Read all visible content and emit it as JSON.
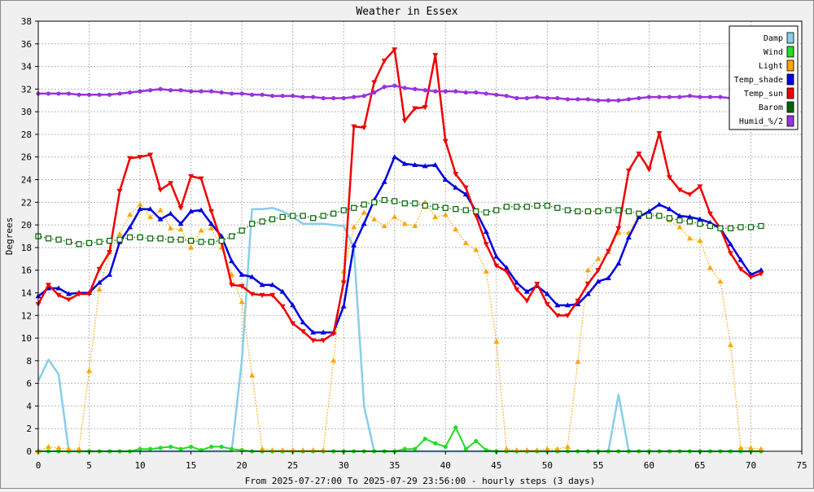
{
  "chart_data": {
    "type": "line",
    "title": "Weather in Essex",
    "xlabel": "From 2025-07-27:00 To 2025-07-29 23:56:00 - hourly steps (3 days)",
    "ylabel": "Degrees",
    "xlim": [
      0,
      75
    ],
    "ylim": [
      0,
      38
    ],
    "x_ticks": [
      0,
      5,
      10,
      15,
      20,
      25,
      30,
      35,
      40,
      45,
      50,
      55,
      60,
      65,
      70,
      75
    ],
    "y_ticks": [
      0,
      2,
      4,
      6,
      8,
      10,
      12,
      14,
      16,
      18,
      20,
      22,
      24,
      26,
      28,
      30,
      32,
      34,
      36,
      38
    ],
    "grid": true,
    "legend_position": "top-right",
    "series": [
      {
        "name": "Damp",
        "color": "#87ceeb",
        "style": "solid",
        "width": 2.5,
        "marker": "none",
        "values": [
          6.2,
          8.1,
          6.8,
          0,
          0,
          0,
          0,
          0,
          0,
          0,
          0,
          0,
          0,
          0,
          0,
          0,
          0,
          0,
          0,
          0,
          8,
          21.4,
          21.4,
          21.5,
          21.2,
          20.7,
          20.1,
          20.1,
          20.1,
          20,
          19.9,
          18,
          4,
          0,
          0,
          0,
          0,
          0,
          0,
          0,
          0,
          0,
          0,
          0,
          0,
          0,
          0,
          0,
          0,
          0,
          0,
          0,
          0,
          0,
          0,
          0,
          0,
          5,
          0,
          0,
          0,
          0,
          0,
          0,
          0,
          0,
          0,
          0,
          0,
          0,
          0,
          0
        ]
      },
      {
        "name": "Wind",
        "color": "#22dd22",
        "style": "solid",
        "width": 2,
        "marker": "circle",
        "values": [
          0,
          0,
          0,
          0,
          0,
          0,
          0,
          0,
          0,
          0,
          0.2,
          0.2,
          0.3,
          0.4,
          0.2,
          0.4,
          0.1,
          0.4,
          0.4,
          0.2,
          0.1,
          0,
          0,
          0,
          0,
          0,
          0,
          0,
          0,
          0,
          0,
          0,
          0,
          0,
          0,
          0,
          0.2,
          0.2,
          1.1,
          0.7,
          0.4,
          2.1,
          0.2,
          0.9,
          0.1,
          0,
          0,
          0,
          0,
          0,
          0,
          0,
          0,
          0,
          0,
          0,
          0,
          0,
          0,
          0,
          0,
          0,
          0,
          0,
          0,
          0,
          0,
          0,
          0,
          0,
          0,
          0
        ]
      },
      {
        "name": "Light",
        "color": "#ffa500",
        "style": "dotted",
        "width": 1.2,
        "marker": "triangle",
        "values": [
          0,
          0.4,
          0.3,
          0.2,
          0.2,
          7.1,
          14.3,
          17.6,
          19.2,
          20.9,
          21.8,
          20.7,
          21.3,
          19.7,
          19.6,
          18,
          19.5,
          19.7,
          18,
          15.6,
          13.2,
          6.7,
          0.2,
          0.1,
          0.1,
          0.1,
          0.1,
          0.1,
          0.1,
          8,
          15.9,
          19.8,
          21.1,
          20.5,
          19.9,
          20.7,
          20.1,
          19.9,
          22,
          20.7,
          20.9,
          19.6,
          18.4,
          17.8,
          15.9,
          9.7,
          0.2,
          0.1,
          0.1,
          0.1,
          0.2,
          0.2,
          0.4,
          7.9,
          16,
          17,
          17.6,
          19.3,
          19.3,
          20.8,
          21.1,
          20.8,
          20.4,
          19.8,
          18.8,
          18.6,
          16.2,
          15,
          9.4,
          0.3,
          0.3,
          0.2
        ]
      },
      {
        "name": "Temp_shade",
        "color": "#0000dd",
        "style": "solid",
        "width": 2.5,
        "marker": "triangle",
        "values": [
          13.7,
          14.4,
          14.4,
          13.9,
          14.0,
          14.0,
          14.9,
          15.6,
          18.5,
          19.8,
          21.4,
          21.4,
          20.5,
          21.0,
          20.1,
          21.2,
          21.3,
          20.1,
          19.0,
          16.8,
          15.6,
          15.4,
          14.7,
          14.7,
          14.1,
          12.9,
          11.4,
          10.5,
          10.5,
          10.5,
          12.8,
          18.2,
          20.1,
          22.2,
          23.8,
          26.0,
          25.4,
          25.3,
          25.2,
          25.3,
          24.0,
          23.3,
          22.7,
          21.2,
          19.4,
          17.2,
          16.2,
          14.9,
          14.1,
          14.6,
          13.9,
          12.9,
          12.9,
          13.0,
          13.9,
          15.0,
          15.3,
          16.6,
          18.9,
          20.7,
          21.2,
          21.8,
          21.4,
          20.8,
          20.7,
          20.5,
          20.2,
          19.7,
          18.3,
          16.9,
          15.6,
          16.0
        ]
      },
      {
        "name": "Temp_sun",
        "color": "#ee0000",
        "style": "solid",
        "width": 2.5,
        "marker": "triangle-down",
        "values": [
          13.0,
          14.7,
          13.8,
          13.4,
          13.9,
          13.9,
          16.1,
          17.6,
          23.0,
          25.9,
          26.0,
          26.2,
          23.1,
          23.7,
          21.5,
          24.3,
          24.1,
          21.2,
          18.5,
          14.7,
          14.6,
          13.9,
          13.8,
          13.8,
          12.8,
          11.3,
          10.6,
          9.8,
          9.8,
          10.4,
          14.9,
          28.7,
          28.6,
          32.6,
          34.5,
          35.5,
          29.2,
          30.3,
          30.4,
          35.0,
          27.4,
          24.5,
          23.3,
          20.8,
          18.3,
          16.4,
          15.9,
          14.3,
          13.3,
          14.8,
          13.0,
          12.0,
          12.0,
          13.3,
          14.8,
          16.0,
          17.7,
          19.7,
          24.8,
          26.3,
          24.9,
          28.1,
          24.2,
          23.1,
          22.7,
          23.4,
          21.0,
          19.7,
          17.5,
          16.1,
          15.4,
          15.7
        ]
      },
      {
        "name": "Barom",
        "color": "#006400",
        "style": "dotted",
        "width": 1.2,
        "marker": "square",
        "values": [
          19.0,
          18.8,
          18.7,
          18.5,
          18.3,
          18.4,
          18.5,
          18.6,
          18.7,
          18.9,
          18.9,
          18.8,
          18.8,
          18.7,
          18.7,
          18.6,
          18.5,
          18.5,
          18.6,
          19.0,
          19.5,
          20.1,
          20.3,
          20.5,
          20.7,
          20.8,
          20.8,
          20.6,
          20.8,
          21.0,
          21.3,
          21.5,
          21.8,
          22.0,
          22.2,
          22.1,
          21.9,
          21.9,
          21.7,
          21.6,
          21.5,
          21.4,
          21.3,
          21.2,
          21.1,
          21.3,
          21.6,
          21.6,
          21.6,
          21.7,
          21.7,
          21.5,
          21.3,
          21.2,
          21.2,
          21.2,
          21.3,
          21.3,
          21.2,
          21.0,
          20.8,
          20.8,
          20.6,
          20.4,
          20.3,
          20.1,
          19.9,
          19.7,
          19.7,
          19.8,
          19.8,
          19.9
        ]
      },
      {
        "name": "Humid_%/2",
        "color": "#9933dd",
        "style": "solid",
        "width": 2.5,
        "marker": "circle",
        "values": [
          31.6,
          31.6,
          31.6,
          31.6,
          31.5,
          31.5,
          31.5,
          31.5,
          31.6,
          31.7,
          31.8,
          31.9,
          32.0,
          31.9,
          31.9,
          31.8,
          31.8,
          31.8,
          31.7,
          31.6,
          31.6,
          31.5,
          31.5,
          31.4,
          31.4,
          31.4,
          31.3,
          31.3,
          31.2,
          31.2,
          31.2,
          31.3,
          31.4,
          31.7,
          32.2,
          32.3,
          32.1,
          32.0,
          31.9,
          31.8,
          31.8,
          31.8,
          31.7,
          31.7,
          31.6,
          31.5,
          31.4,
          31.2,
          31.2,
          31.3,
          31.2,
          31.2,
          31.1,
          31.1,
          31.1,
          31.0,
          31.0,
          31.0,
          31.1,
          31.2,
          31.3,
          31.3,
          31.3,
          31.3,
          31.4,
          31.3,
          31.3,
          31.3,
          31.2,
          31.2,
          31.1,
          31.1
        ]
      }
    ]
  }
}
